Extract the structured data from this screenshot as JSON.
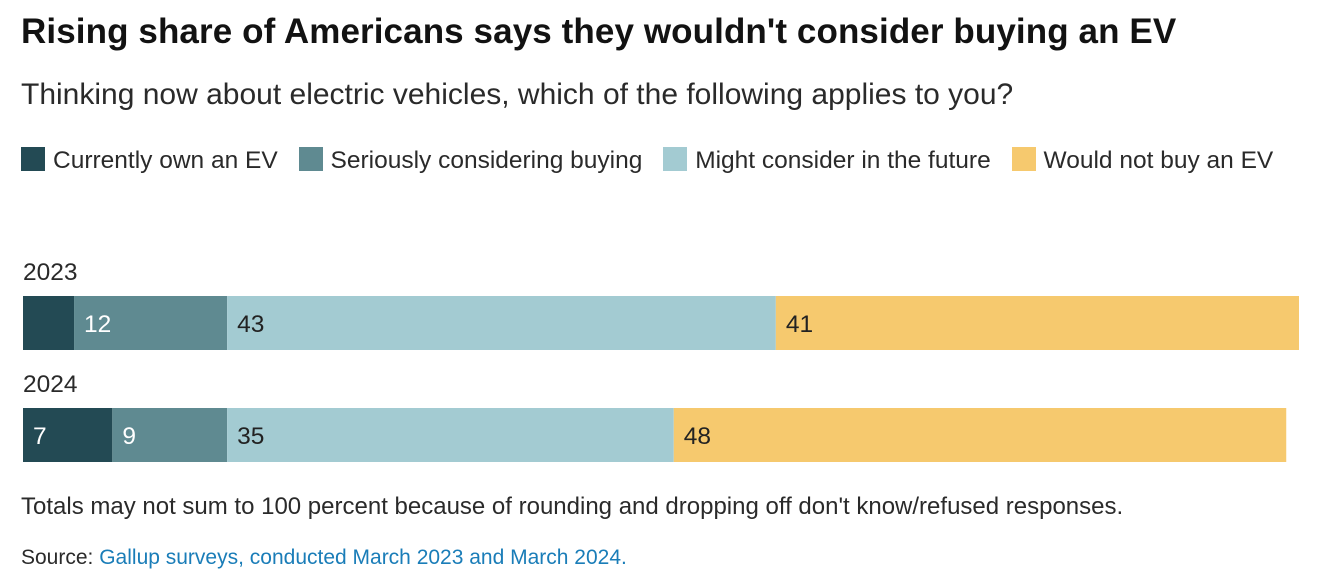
{
  "title": "Rising share of Americans says they wouldn't consider buying an EV",
  "subtitle": "Thinking now about electric vehicles, which of the following applies to you?",
  "legend": [
    {
      "label": "Currently own an EV",
      "color": "#234a54"
    },
    {
      "label": "Seriously considering buying",
      "color": "#5f8a91"
    },
    {
      "label": "Might consider in the future",
      "color": "#a3cbd2"
    },
    {
      "label": "Would not buy an EV",
      "color": "#f6c96e"
    }
  ],
  "note": "Totals may not sum to 100 percent because of rounding and dropping off don't know/refused responses.",
  "source": {
    "prefix": "Source:",
    "link_text": "Gallup surveys, conducted March 2023 and March 2024."
  },
  "chart_data": {
    "type": "bar",
    "orientation": "horizontal",
    "stacked": true,
    "categories": [
      "2023",
      "2024"
    ],
    "series": [
      {
        "name": "Currently own an EV",
        "values": [
          4,
          7
        ],
        "labels": [
          "",
          "7"
        ],
        "color": "#234a54",
        "label_color": "#ffffff"
      },
      {
        "name": "Seriously considering buying",
        "values": [
          12,
          9
        ],
        "labels": [
          "12",
          "9"
        ],
        "color": "#5f8a91",
        "label_color": "#ffffff"
      },
      {
        "name": "Might consider in the future",
        "values": [
          43,
          35
        ],
        "labels": [
          "43",
          "35"
        ],
        "color": "#a3cbd2",
        "label_color": "#222222"
      },
      {
        "name": "Would not buy an EV",
        "values": [
          41,
          48
        ],
        "labels": [
          "41",
          "48"
        ],
        "color": "#f6c96e",
        "label_color": "#222222"
      }
    ],
    "xlim": [
      0,
      100
    ],
    "grid": false
  }
}
